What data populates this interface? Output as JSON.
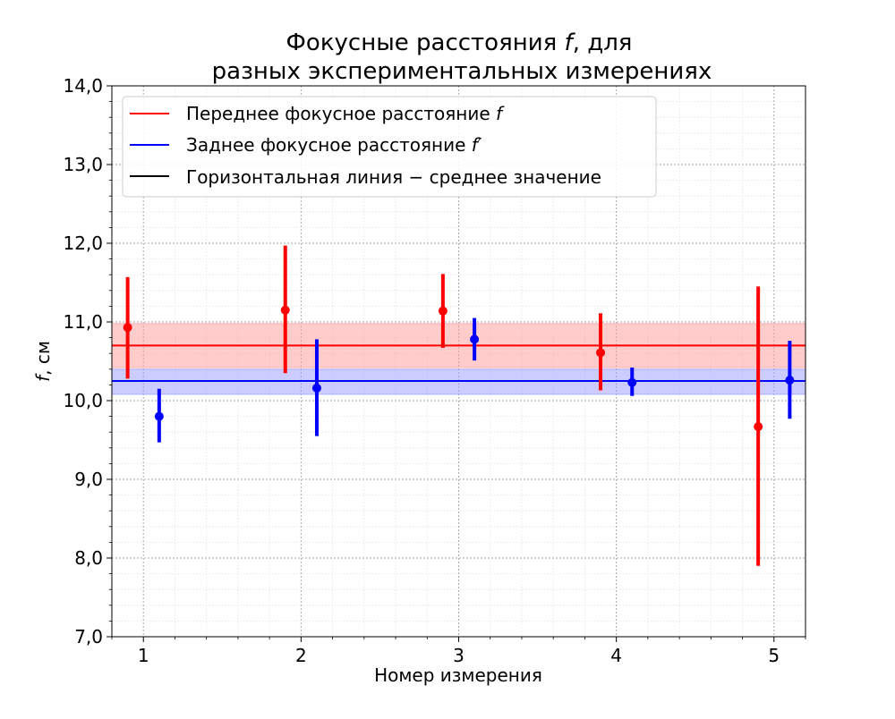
{
  "chart_data": {
    "type": "scatter",
    "title_line1_prefix": "Фокусные расстояния ",
    "title_line1_symbol": "f",
    "title_line1_suffix": ", для",
    "title_line2": "разных экспериментальных измерениях",
    "xlabel": "Номер измерения",
    "ylabel_symbol": "f",
    "ylabel_suffix": ", см",
    "xlim": [
      0.8,
      5.2
    ],
    "ylim": [
      7.0,
      14.0
    ],
    "xticks": [
      1,
      2,
      3,
      4,
      5
    ],
    "yticks": [
      7.0,
      8.0,
      9.0,
      10.0,
      11.0,
      12.0,
      13.0,
      14.0
    ],
    "ytick_labels": [
      "7,0",
      "8,0",
      "9,0",
      "10,0",
      "11,0",
      "12,0",
      "13,0",
      "14,0"
    ],
    "grid": true,
    "legend_position": "top-left",
    "legend": [
      {
        "prefix": "Переднее фокусное расстояние ",
        "symbol": "f",
        "color": "#ff0000"
      },
      {
        "prefix": "Заднее фокусное расстояние ",
        "symbol": "f′",
        "color": "#0000ff"
      },
      {
        "prefix": "Горизонтальная линия − среднее значение",
        "symbol": "",
        "color": "#000000"
      }
    ],
    "series": [
      {
        "name": "Переднее фокусное расстояние f",
        "color": "#ff0000",
        "band_color": "#ff9a9a",
        "x": [
          0.9,
          1.9,
          2.9,
          3.9,
          4.9
        ],
        "y": [
          10.93,
          11.15,
          11.14,
          10.61,
          9.67
        ],
        "yerr_low": [
          10.28,
          10.35,
          10.67,
          10.13,
          7.9
        ],
        "yerr_high": [
          11.57,
          11.97,
          11.61,
          11.11,
          11.45
        ],
        "mean": 10.7,
        "band": [
          10.42,
          10.98
        ]
      },
      {
        "name": "Заднее фокусное расстояние f′",
        "color": "#0000ff",
        "band_color": "#9a9aff",
        "x": [
          1.1,
          2.1,
          3.1,
          4.1,
          5.1
        ],
        "y": [
          9.8,
          10.16,
          10.78,
          10.23,
          10.26
        ],
        "yerr_low": [
          9.47,
          9.55,
          10.51,
          10.06,
          9.77
        ],
        "yerr_high": [
          10.15,
          10.78,
          11.05,
          10.42,
          10.76
        ],
        "mean": 10.25,
        "band": [
          10.08,
          10.4
        ]
      }
    ]
  }
}
